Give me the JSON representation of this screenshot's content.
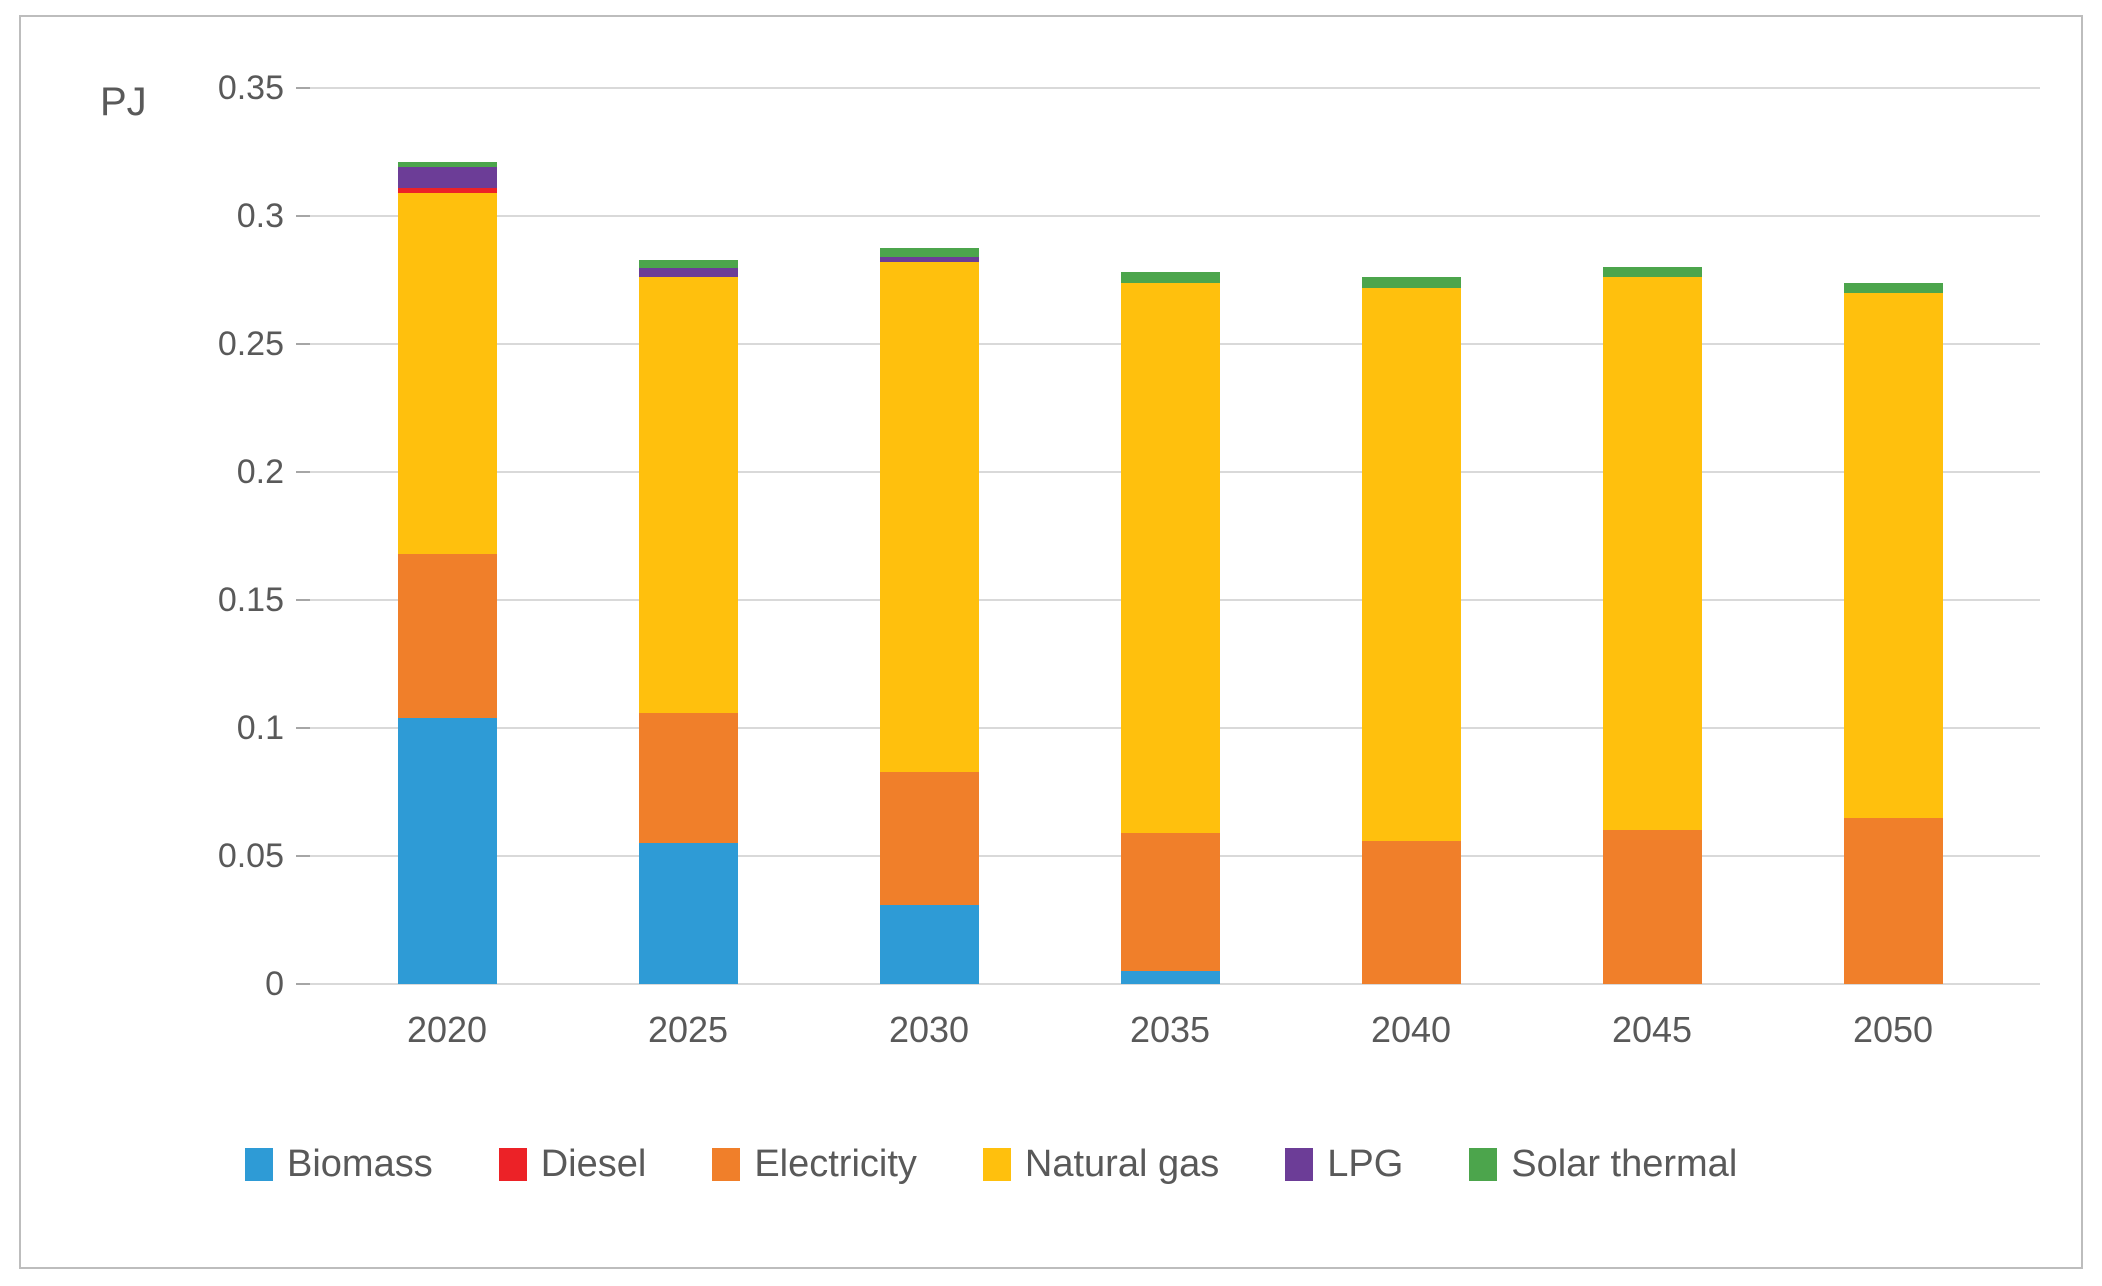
{
  "chart_data": {
    "type": "bar",
    "stacked": true,
    "title": "",
    "unit_label": "PJ",
    "xlabel": "",
    "ylabel": "PJ",
    "categories": [
      "2020",
      "2025",
      "2030",
      "2035",
      "2040",
      "2045",
      "2050"
    ],
    "series": [
      {
        "name": "Biomass",
        "color": "#2E9BD6",
        "values": [
          0.104,
          0.055,
          0.031,
          0.005,
          0,
          0,
          0
        ]
      },
      {
        "name": "Diesel",
        "color": "#EC2227",
        "values": [
          0.002,
          0,
          0,
          0,
          0,
          0,
          0
        ]
      },
      {
        "name": "Electricity",
        "color": "#F07F2A",
        "values": [
          0.064,
          0.051,
          0.052,
          0.054,
          0.056,
          0.06,
          0.065
        ]
      },
      {
        "name": "Natural gas",
        "color": "#FFC00D",
        "values": [
          0.141,
          0.17,
          0.199,
          0.215,
          0.216,
          0.216,
          0.205
        ]
      },
      {
        "name": "LPG",
        "color": "#6C3D97",
        "values": [
          0.008,
          0.0035,
          0.002,
          0,
          0,
          0,
          0
        ]
      },
      {
        "name": "Solar thermal",
        "color": "#4CA54C",
        "values": [
          0.002,
          0.0035,
          0.0035,
          0.004,
          0.004,
          0.004,
          0.004
        ]
      }
    ],
    "totals": [
      0.321,
      0.283,
      0.2875,
      0.278,
      0.276,
      0.28,
      0.274
    ],
    "stack_order": [
      "Biomass",
      "Electricity",
      "Natural gas",
      "Diesel",
      "LPG",
      "Solar thermal"
    ],
    "ylim": [
      0,
      0.35
    ],
    "yticks": [
      0,
      0.05,
      0.1,
      0.15,
      0.2,
      0.25,
      0.3,
      0.35
    ],
    "ytick_labels": [
      "0",
      "0.05",
      "0.1",
      "0.15",
      "0.2",
      "0.25",
      "0.3",
      "0.35"
    ],
    "grid": true,
    "legend_position": "bottom"
  },
  "colors": {
    "text": "#595959",
    "gridline": "#d9d9d9",
    "frame_border": "#bdbdbd"
  }
}
